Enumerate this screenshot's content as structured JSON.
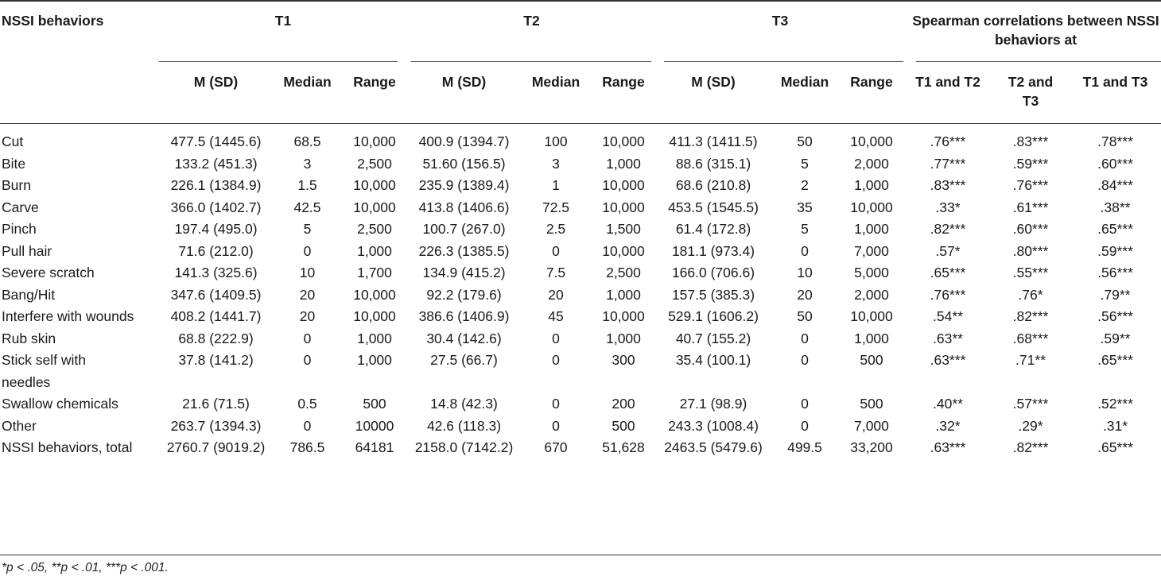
{
  "headers": {
    "first": "NSSI behaviors",
    "groups": [
      "T1",
      "T2",
      "T3"
    ],
    "spearman": "Spearman correlations between NSSI behaviors at",
    "sub": [
      "M (SD)",
      "Median",
      "Range",
      "M (SD)",
      "Median",
      "Range",
      "M (SD)",
      "Median",
      "Range"
    ],
    "corr": [
      "T1 and T2",
      "T2 and T3",
      "T1 and T3"
    ]
  },
  "rows": [
    {
      "label": "Cut",
      "cells": [
        "477.5 (1445.6)",
        "68.5",
        "10,000",
        "400.9 (1394.7)",
        "100",
        "10,000",
        "411.3 (1411.5)",
        "50",
        "10,000",
        ".76***",
        ".83***",
        ".78***"
      ]
    },
    {
      "label": "Bite",
      "cells": [
        "133.2 (451.3)",
        "3",
        "2,500",
        "51.60 (156.5)",
        "3",
        "1,000",
        "88.6 (315.1)",
        "5",
        "2,000",
        ".77***",
        ".59***",
        ".60***"
      ]
    },
    {
      "label": "Burn",
      "cells": [
        "226.1 (1384.9)",
        "1.5",
        "10,000",
        "235.9 (1389.4)",
        "1",
        "10,000",
        "68.6 (210.8)",
        "2",
        "1,000",
        ".83***",
        ".76***",
        ".84***"
      ]
    },
    {
      "label": "Carve",
      "cells": [
        "366.0 (1402.7)",
        "42.5",
        "10,000",
        "413.8 (1406.6)",
        "72.5",
        "10,000",
        "453.5 (1545.5)",
        "35",
        "10,000",
        ".33*",
        ".61***",
        ".38**"
      ]
    },
    {
      "label": "Pinch",
      "cells": [
        "197.4 (495.0)",
        "5",
        "2,500",
        "100.7 (267.0)",
        "2.5",
        "1,500",
        "61.4 (172.8)",
        "5",
        "1,000",
        ".82***",
        ".60***",
        ".65***"
      ]
    },
    {
      "label": "Pull hair",
      "cells": [
        "71.6 (212.0)",
        "0",
        "1,000",
        "226.3 (1385.5)",
        "0",
        "10,000",
        "181.1 (973.4)",
        "0",
        "7,000",
        ".57*",
        ".80***",
        ".59***"
      ]
    },
    {
      "label": "Severe scratch",
      "cells": [
        "141.3 (325.6)",
        "10",
        "1,700",
        "134.9 (415.2)",
        "7.5",
        "2,500",
        "166.0 (706.6)",
        "10",
        "5,000",
        ".65***",
        ".55***",
        ".56***"
      ]
    },
    {
      "label": "Bang/Hit",
      "cells": [
        "347.6 (1409.5)",
        "20",
        "10,000",
        "92.2 (179.6)",
        "20",
        "1,000",
        "157.5 (385.3)",
        "20",
        "2,000",
        ".76***",
        ".76*",
        ".79**"
      ]
    },
    {
      "label": "Interfere with wounds",
      "cells": [
        "408.2 (1441.7)",
        "20",
        "10,000",
        "386.6 (1406.9)",
        "45",
        "10,000",
        "529.1 (1606.2)",
        "50",
        "10,000",
        ".54**",
        ".82***",
        ".56***"
      ]
    },
    {
      "label": "Rub skin",
      "cells": [
        "68.8 (222.9)",
        "0",
        "1,000",
        "30.4 (142.6)",
        "0",
        "1,000",
        "40.7 (155.2)",
        "0",
        "1,000",
        ".63**",
        ".68***",
        ".59**"
      ]
    },
    {
      "label": "Stick self with needles",
      "cells": [
        "37.8 (141.2)",
        "0",
        "1,000",
        "27.5 (66.7)",
        "0",
        "300",
        "35.4 (100.1)",
        "0",
        "500",
        ".63***",
        ".71**",
        ".65***"
      ]
    },
    {
      "label": "Swallow chemicals",
      "cells": [
        "21.6 (71.5)",
        "0.5",
        "500",
        "14.8 (42.3)",
        "0",
        "200",
        "27.1 (98.9)",
        "0",
        "500",
        ".40**",
        ".57***",
        ".52***"
      ]
    },
    {
      "label": "Other",
      "cells": [
        "263.7 (1394.3)",
        "0",
        "10000",
        "42.6 (118.3)",
        "0",
        "500",
        "243.3 (1008.4)",
        "0",
        "7,000",
        ".32*",
        ".29*",
        ".31*"
      ]
    },
    {
      "label": "NSSI behaviors, total",
      "cells": [
        "2760.7 (9019.2)",
        "786.5",
        "64181",
        "2158.0 (7142.2)",
        "670",
        "51,628",
        "2463.5 (5479.6)",
        "499.5",
        "33,200",
        ".63***",
        ".82***",
        ".65***"
      ]
    }
  ],
  "footnote": "*p < .05, **p < .01, ***p < .001."
}
